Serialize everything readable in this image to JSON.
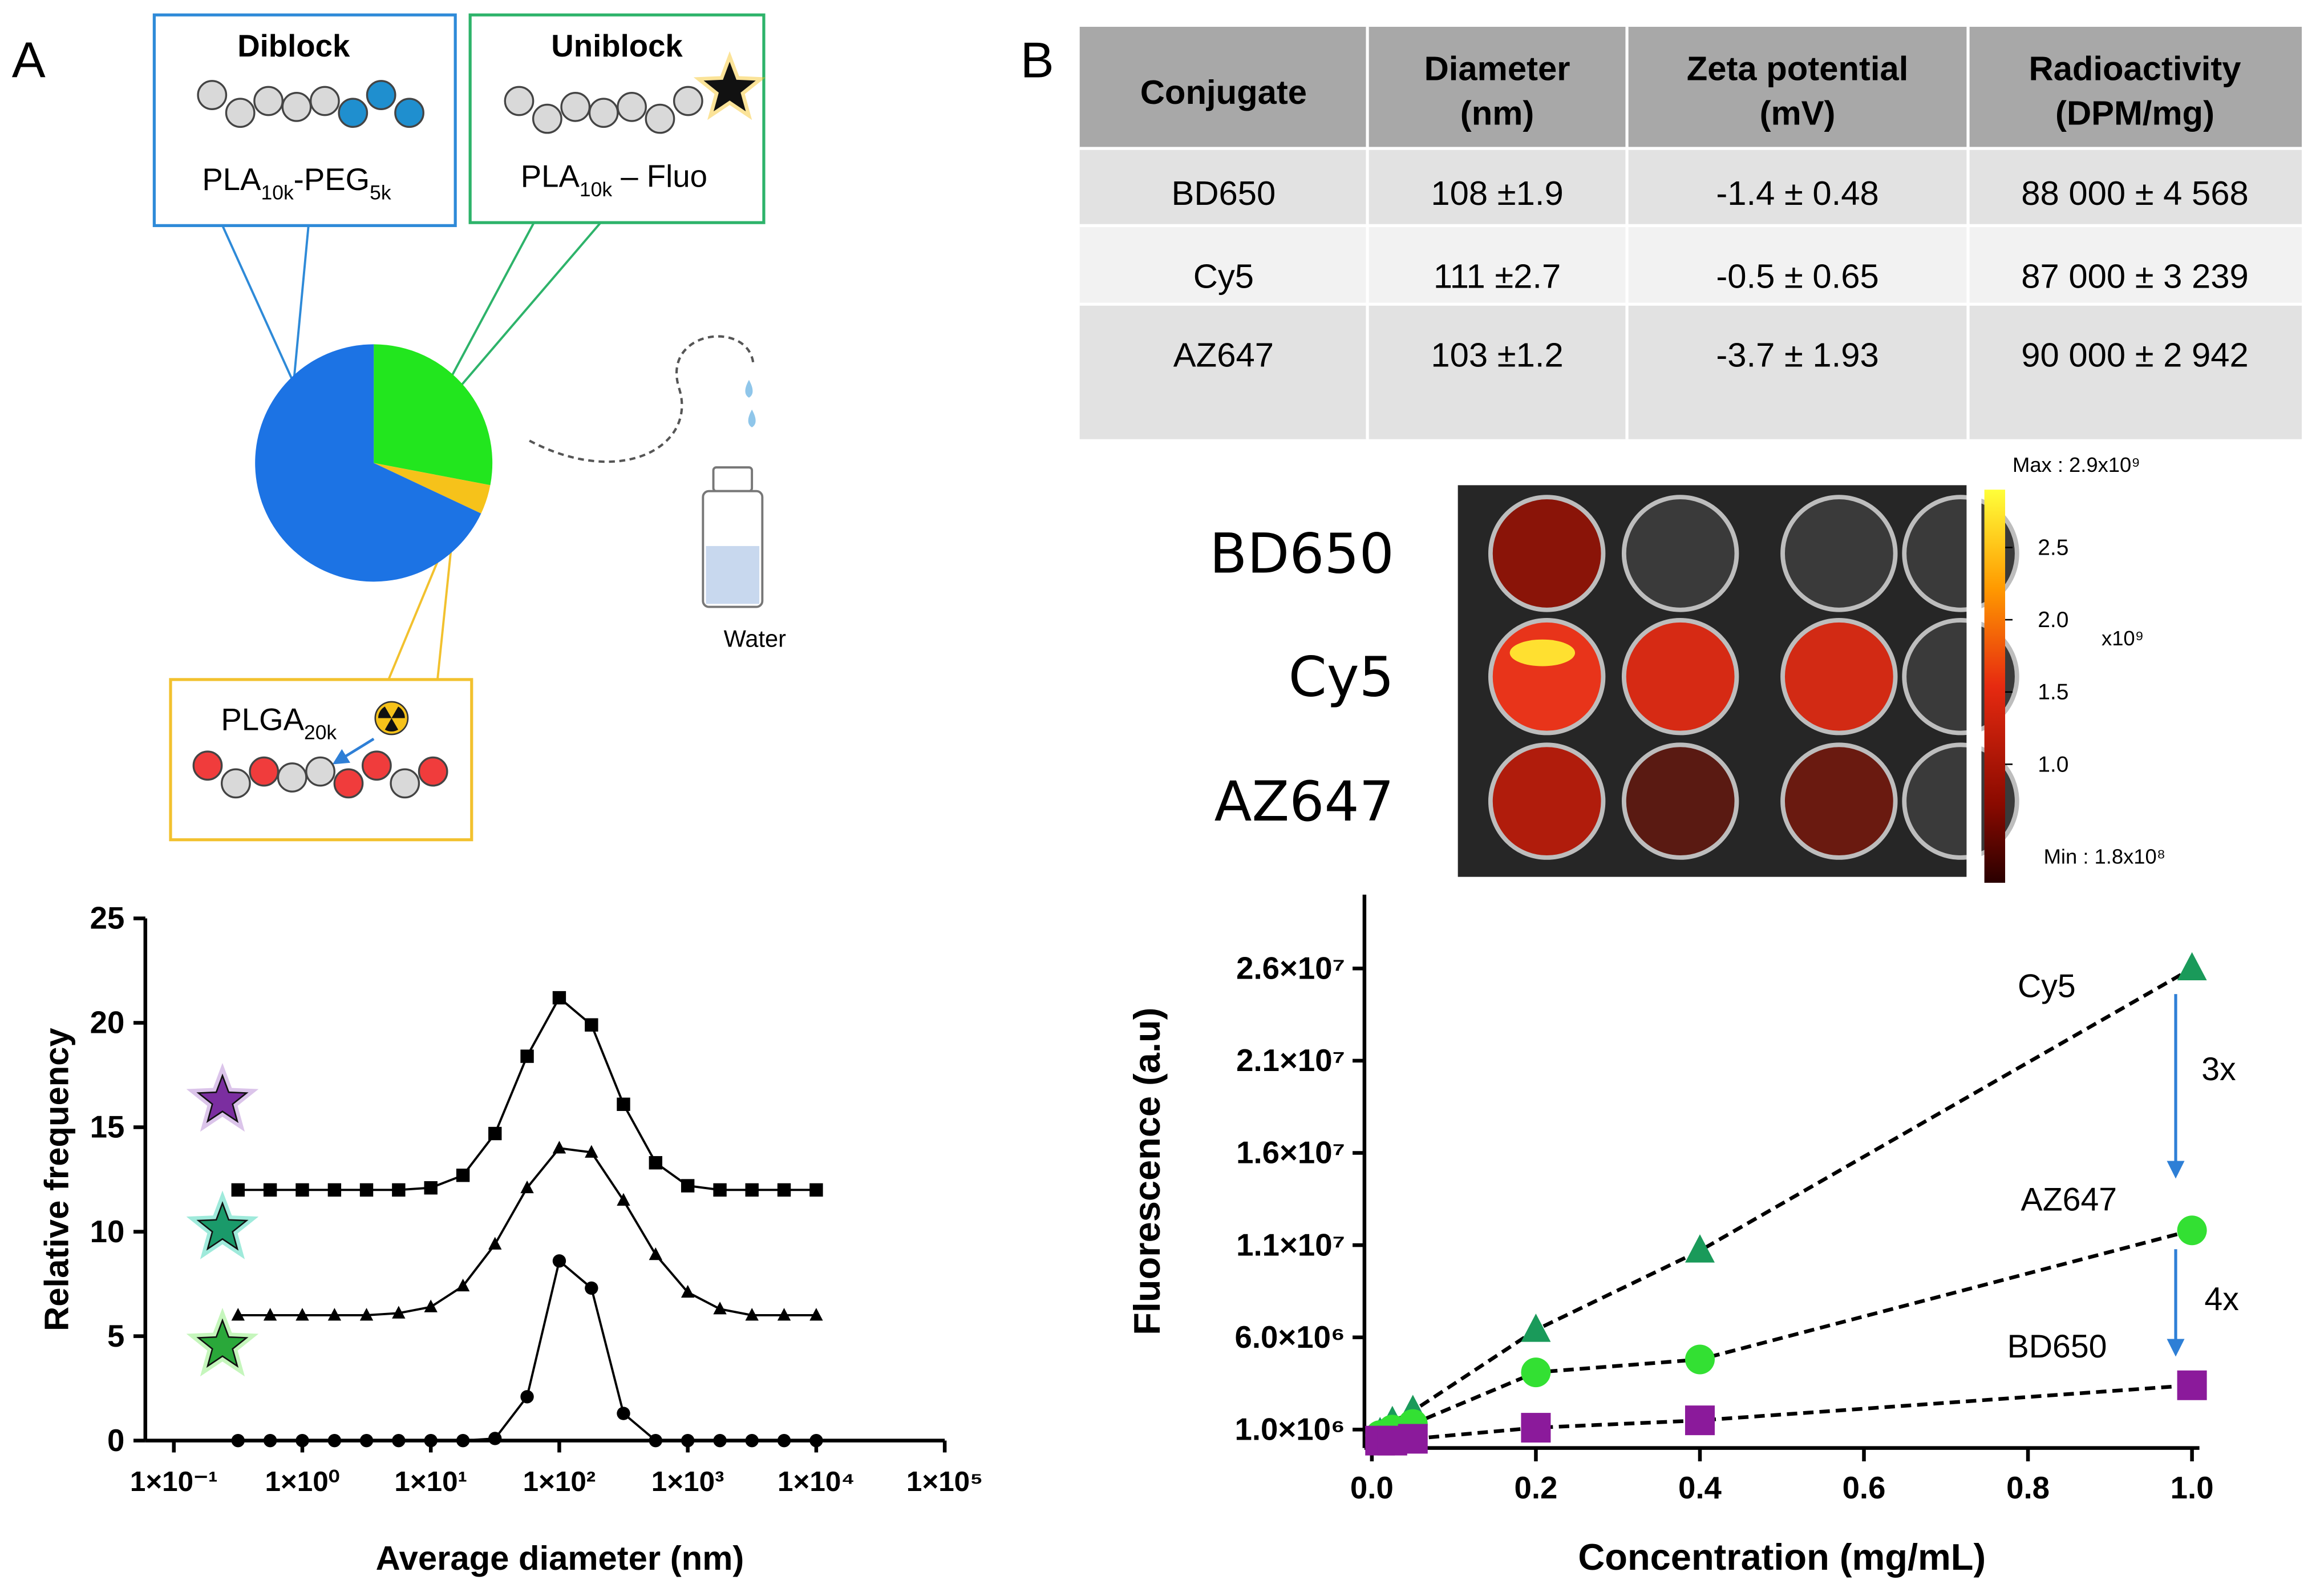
{
  "panels": {
    "a": "A",
    "b": "B"
  },
  "diagram": {
    "diblock": {
      "title": "Diblock",
      "formula": [
        "PLA",
        "10k",
        "-PEG",
        "5k"
      ]
    },
    "uniblock": {
      "title": "Uniblock",
      "formula": [
        "PLA",
        "10k",
        " – Fluo"
      ]
    },
    "plga": {
      "formula": [
        "PLGA",
        "20k"
      ]
    },
    "water": "Water"
  },
  "table": {
    "header": [
      [
        "Conjugate"
      ],
      [
        "Diameter",
        "(nm)"
      ],
      [
        "Zeta potential",
        "(mV)"
      ],
      [
        "Radioactivity",
        "(DPM/mg)"
      ]
    ],
    "rows": [
      [
        "BD650",
        "108 ±1.9",
        "-1.4 ± 0.48",
        "88 000  ± 4 568"
      ],
      [
        "Cy5",
        "111 ±2.7",
        "-0.5  ± 0.65",
        "87 000 ± 3 239"
      ],
      [
        "AZ647",
        "103 ±1.2",
        "-3.7 ± 1.93",
        "90 000 ± 2 942"
      ]
    ]
  },
  "imaging": {
    "rows": [
      "BD650",
      "Cy5",
      "AZ647"
    ],
    "max": "Max : 2.9x10⁹",
    "min": "Min : 1.8x10⁸",
    "unit": "x10⁹",
    "colorbar_lim": [
      0.18,
      2.9
    ],
    "colorbar_ticks": [
      2.5,
      {
        "value": 2,
        "label": "2.0"
      },
      1.5,
      {
        "value": 1,
        "label": "1.0"
      }
    ]
  },
  "chart_data": [
    {
      "type": "pie",
      "values": [
        28,
        4,
        68
      ],
      "colors": [
        "#22e61e",
        "#f6c21a",
        "#1c73e4"
      ]
    },
    {
      "type": "line",
      "xlabel": "Average diameter (nm)",
      "ylabel": "Relative frequency",
      "xscale": "log",
      "x": [
        0.316,
        0.562,
        1,
        1.78,
        3.16,
        5.62,
        10,
        17.8,
        31.6,
        56.2,
        100,
        178,
        316,
        562,
        1000,
        1780,
        3160,
        5620,
        10000
      ],
      "xlim": [
        0.06,
        100000
      ],
      "xticks": [
        {
          "value": 0.1,
          "label": "1×10⁻¹"
        },
        {
          "value": 1,
          "label": "1×10⁰"
        },
        {
          "value": 10,
          "label": "1×10¹"
        },
        {
          "value": 100,
          "label": "1×10²"
        },
        {
          "value": 1000,
          "label": "1×10³"
        },
        {
          "value": 10000,
          "label": "1×10⁴"
        },
        {
          "value": 100000,
          "label": "1×10⁵"
        }
      ],
      "ylim": [
        0,
        25
      ],
      "yticks": [
        0,
        5,
        10,
        15,
        20,
        25
      ],
      "series": [
        {
          "color": "#000000",
          "marker": "square",
          "values": [
            12,
            12,
            12,
            12,
            12,
            12,
            12.1,
            12.7,
            14.7,
            18.4,
            21.2,
            19.9,
            16.1,
            13.3,
            12.2,
            12,
            12,
            12,
            12
          ]
        },
        {
          "color": "#000000",
          "marker": "triangle",
          "values": [
            6,
            6,
            6,
            6,
            6,
            6.1,
            6.4,
            7.4,
            9.4,
            12.1,
            14.0,
            13.8,
            11.5,
            8.9,
            7.1,
            6.3,
            6,
            6,
            6
          ]
        },
        {
          "color": "#000000",
          "marker": "circle",
          "values": [
            0,
            0,
            0,
            0,
            0,
            0,
            0,
            0,
            0.1,
            2.1,
            8.6,
            7.3,
            1.3,
            0,
            0,
            0,
            0,
            0,
            0
          ]
        }
      ]
    },
    {
      "type": "scatter",
      "xlabel": "Concentration (mg/mL)",
      "ylabel": "Fluorescence (a.u)",
      "x": [
        0.01,
        0.025,
        0.05,
        0.2,
        0.4,
        1.0
      ],
      "xlim": [
        0,
        1
      ],
      "xticks": [
        {
          "value": 0,
          "label": "0.0"
        },
        0.2,
        0.4,
        0.6,
        0.8,
        {
          "value": 1,
          "label": "1.0"
        }
      ],
      "ylim": [
        0,
        30000000
      ],
      "yticks": [
        {
          "value": 1000000,
          "label": "1.0×10⁶"
        },
        {
          "value": 6000000,
          "label": "6.0×10⁶"
        },
        {
          "value": 11000000,
          "label": "1.1×10⁷"
        },
        {
          "value": 16000000,
          "label": "1.6×10⁷"
        },
        {
          "value": 21000000,
          "label": "2.1×10⁷"
        },
        {
          "value": 26000000,
          "label": "2.6×10⁷"
        }
      ],
      "series": [
        {
          "name": "Cy5",
          "color": "#1a9a5a",
          "marker": "triangle",
          "values": [
            800000,
            1400000,
            2000000,
            6400000,
            10700000,
            26000000
          ]
        },
        {
          "name": "AZ647",
          "color": "#33e033",
          "marker": "circle",
          "values": [
            700000,
            1000000,
            1300000,
            4100000,
            4800000,
            11800000
          ]
        },
        {
          "name": "BD650",
          "color": "#8b1a9b",
          "marker": "square",
          "values": [
            400000,
            400000,
            500000,
            1100000,
            1500000,
            3400000
          ]
        }
      ],
      "annotations": [
        "3x",
        "4x"
      ]
    }
  ]
}
